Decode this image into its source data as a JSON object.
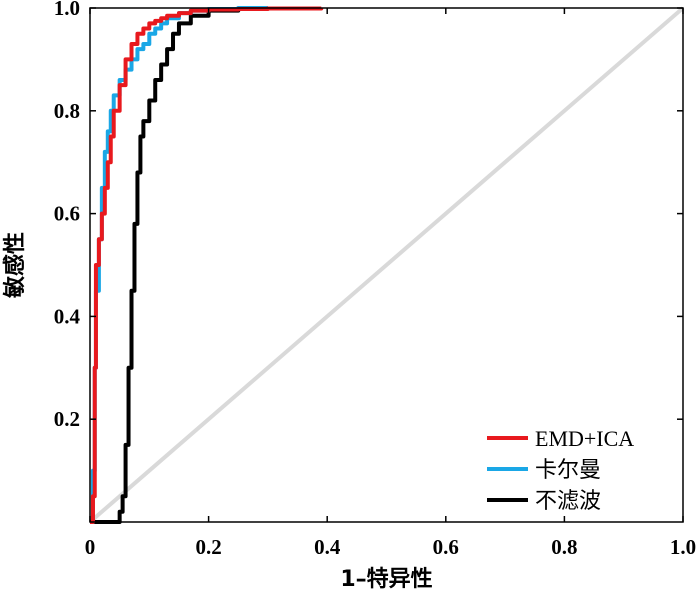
{
  "chart_data": {
    "type": "line",
    "title": "",
    "xlabel": "1–特异性",
    "ylabel": "敏感性",
    "xlim": [
      0,
      1
    ],
    "ylim": [
      0,
      1
    ],
    "x_ticks": [
      "0",
      "0.2",
      "0.4",
      "0.6",
      "0.8",
      "1.0"
    ],
    "y_ticks": [
      "0.2",
      "0.4",
      "0.6",
      "0.8",
      "1.0"
    ],
    "grid": false,
    "legend_position": "bottom-right",
    "series": [
      {
        "name": "EMD+ICA",
        "color": "#e8191e",
        "x": [
          0,
          0.005,
          0.008,
          0.01,
          0.015,
          0.02,
          0.025,
          0.03,
          0.035,
          0.04,
          0.05,
          0.06,
          0.07,
          0.08,
          0.09,
          0.1,
          0.11,
          0.12,
          0.13,
          0.15,
          0.17,
          0.2,
          0.25,
          0.3,
          0.35,
          0.39
        ],
        "y": [
          0,
          0.05,
          0.3,
          0.5,
          0.55,
          0.6,
          0.65,
          0.7,
          0.75,
          0.8,
          0.85,
          0.9,
          0.93,
          0.95,
          0.96,
          0.97,
          0.975,
          0.98,
          0.985,
          0.99,
          0.995,
          0.997,
          0.998,
          0.999,
          0.999,
          1.0
        ]
      },
      {
        "name": "卡尔曼",
        "color": "#1aa7e6",
        "x": [
          0,
          0.005,
          0.008,
          0.01,
          0.015,
          0.02,
          0.025,
          0.03,
          0.035,
          0.04,
          0.05,
          0.06,
          0.07,
          0.08,
          0.09,
          0.1,
          0.11,
          0.12,
          0.13,
          0.15,
          0.17,
          0.2,
          0.25,
          0.3
        ],
        "y": [
          0,
          0.1,
          0.3,
          0.45,
          0.55,
          0.65,
          0.72,
          0.76,
          0.8,
          0.83,
          0.86,
          0.88,
          0.9,
          0.92,
          0.93,
          0.95,
          0.96,
          0.97,
          0.98,
          0.99,
          0.995,
          0.998,
          1.0,
          1.0
        ]
      },
      {
        "name": "不滤波",
        "color": "#000000",
        "x": [
          0,
          0.03,
          0.05,
          0.055,
          0.06,
          0.065,
          0.07,
          0.075,
          0.08,
          0.085,
          0.09,
          0.1,
          0.11,
          0.12,
          0.13,
          0.14,
          0.15,
          0.17,
          0.2,
          0.25,
          0.3
        ],
        "y": [
          0,
          0.0,
          0.02,
          0.05,
          0.15,
          0.3,
          0.45,
          0.58,
          0.68,
          0.75,
          0.78,
          0.82,
          0.86,
          0.89,
          0.92,
          0.95,
          0.97,
          0.985,
          0.995,
          0.999,
          1.0
        ]
      },
      {
        "name": "",
        "color": "#d9d9d9",
        "x": [
          0,
          1
        ],
        "y": [
          0,
          1
        ]
      }
    ]
  }
}
